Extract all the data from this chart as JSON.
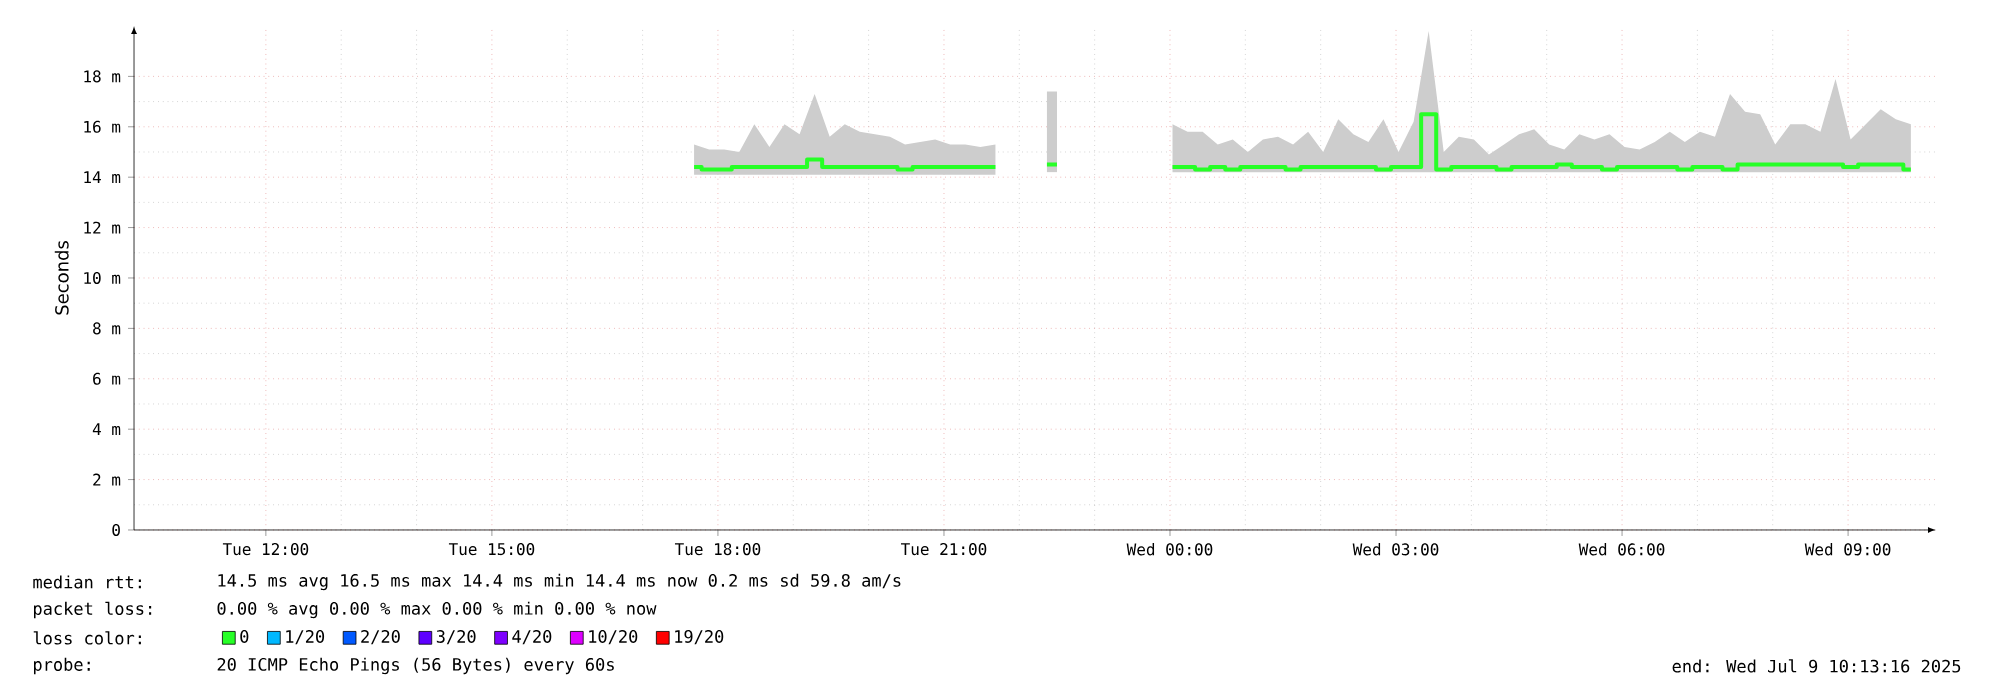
{
  "chart_data": {
    "type": "step",
    "ylabel": "Seconds",
    "annotations": [
      "median rtt:",
      "14.5 ms avg  16.5 ms max  14.4 ms min  14.4 ms now  0.2 ms sd  59.8   am/s",
      "packet loss:",
      "0.00 % avg  0.00 % max  0.00 % min  0.00 % now",
      "loss color:",
      "probe:",
      "20 ICMP Echo Pings (56 Bytes) every 60s",
      "end: Wed Jul  9 10:13:16 2025"
    ],
    "xlim": [
      "2025-07-08T10:15",
      "2025-07-09T10:10"
    ],
    "xticks": [
      {
        "value": "2025-07-08T12:00",
        "label": "Tue 12:00"
      },
      {
        "value": "2025-07-08T15:00",
        "label": "Tue 15:00"
      },
      {
        "value": "2025-07-08T18:00",
        "label": "Tue 18:00"
      },
      {
        "value": "2025-07-08T21:00",
        "label": "Tue 21:00"
      },
      {
        "value": "2025-07-09T00:00",
        "label": "Wed 00:00"
      },
      {
        "value": "2025-07-09T03:00",
        "label": "Wed 03:00"
      },
      {
        "value": "2025-07-09T06:00",
        "label": "Wed 06:00"
      },
      {
        "value": "2025-07-09T09:00",
        "label": "Wed 09:00"
      }
    ],
    "ylim": [
      0,
      20
    ],
    "yticks": [
      0,
      {
        "value": 2,
        "label": "2 m"
      },
      {
        "value": 4,
        "label": "4 m"
      },
      {
        "value": 6,
        "label": "6 m"
      },
      {
        "value": 8,
        "label": "8 m"
      },
      {
        "value": 10,
        "label": "10 m"
      },
      {
        "value": 12,
        "label": "12 m"
      },
      {
        "value": 14,
        "label": "14 m"
      },
      {
        "value": 16,
        "label": "16 m"
      },
      {
        "value": 18,
        "label": "18 m"
      }
    ],
    "grid": true,
    "legend": "bottom left",
    "marker": "none",
    "series": [
      {
        "name": "0",
        "color": "#26ff26",
        "x": [
          "2025-07-08T17:41",
          "2025-07-08T17:53",
          "2025-07-08T18:05",
          "2025-07-08T18:17",
          "2025-07-08T18:29",
          "2025-07-08T18:41",
          "2025-07-08T18:53",
          "2025-07-08T19:05",
          "2025-07-08T19:17",
          "2025-07-08T19:29",
          "2025-07-08T19:41",
          "2025-07-08T19:53",
          "2025-07-08T20:05",
          "2025-07-08T20:17",
          "2025-07-08T20:29",
          "2025-07-08T20:41",
          "2025-07-08T20:53",
          "2025-07-08T21:05",
          "2025-07-08T21:17",
          "2025-07-08T21:29",
          "2025-07-08T21:41",
          "2025-07-08T22:06",
          "2025-07-08T22:22",
          "2025-07-08T22:30",
          "2025-07-08T23:12",
          "2025-07-09T00:02",
          "2025-07-09T00:14",
          "2025-07-09T00:26",
          "2025-07-09T00:38",
          "2025-07-09T00:50",
          "2025-07-09T01:02",
          "2025-07-09T01:14",
          "2025-07-09T01:26",
          "2025-07-09T01:38",
          "2025-07-09T01:50",
          "2025-07-09T02:02",
          "2025-07-09T02:14",
          "2025-07-09T02:26",
          "2025-07-09T02:38",
          "2025-07-09T02:50",
          "2025-07-09T03:02",
          "2025-07-09T03:14",
          "2025-07-09T03:26",
          "2025-07-09T03:38",
          "2025-07-09T03:50",
          "2025-07-09T04:02",
          "2025-07-09T04:14",
          "2025-07-09T04:26",
          "2025-07-09T04:38",
          "2025-07-09T04:50",
          "2025-07-09T05:02",
          "2025-07-09T05:14",
          "2025-07-09T05:26",
          "2025-07-09T05:38",
          "2025-07-09T05:50",
          "2025-07-09T06:02",
          "2025-07-09T06:14",
          "2025-07-09T06:26",
          "2025-07-09T06:38",
          "2025-07-09T06:50",
          "2025-07-09T07:02",
          "2025-07-09T07:14",
          "2025-07-09T07:26",
          "2025-07-09T07:38",
          "2025-07-09T07:50",
          "2025-07-09T08:02",
          "2025-07-09T08:14",
          "2025-07-09T08:26",
          "2025-07-09T08:38",
          "2025-07-09T08:50",
          "2025-07-09T09:02",
          "2025-07-09T09:14",
          "2025-07-09T09:26",
          "2025-07-09T09:38",
          "2025-07-09T09:50"
        ],
        "values": [
          14.4,
          14.3,
          14.3,
          14.4,
          14.4,
          14.4,
          14.4,
          14.4,
          14.7,
          14.4,
          14.4,
          14.4,
          14.4,
          14.4,
          14.3,
          14.4,
          14.4,
          14.4,
          14.4,
          14.4,
          14.4,
          null,
          14.5,
          14.5,
          null,
          14.4,
          14.4,
          14.3,
          14.4,
          14.3,
          14.4,
          14.4,
          14.4,
          14.3,
          14.4,
          14.4,
          14.4,
          14.4,
          14.4,
          14.3,
          14.4,
          14.4,
          16.5,
          14.3,
          14.4,
          14.4,
          14.4,
          14.3,
          14.4,
          14.4,
          14.4,
          14.5,
          14.4,
          14.4,
          14.3,
          14.4,
          14.4,
          14.4,
          14.4,
          14.3,
          14.4,
          14.4,
          14.3,
          14.5,
          14.5,
          14.5,
          14.5,
          14.5,
          14.5,
          14.5,
          14.4,
          14.5,
          14.5,
          14.5,
          14.3
        ],
        "lower": [
          14.1,
          14.1,
          14.1,
          14.1,
          14.1,
          14.1,
          14.1,
          14.1,
          14.1,
          14.1,
          14.1,
          14.1,
          14.1,
          14.1,
          14.1,
          14.1,
          14.1,
          14.1,
          14.1,
          14.1,
          14.1,
          null,
          14.2,
          14.2,
          null,
          14.2,
          14.2,
          14.2,
          14.2,
          14.2,
          14.2,
          14.2,
          14.2,
          14.2,
          14.2,
          14.2,
          14.2,
          14.2,
          14.2,
          14.2,
          14.2,
          14.2,
          14.2,
          14.2,
          14.2,
          14.2,
          14.2,
          14.2,
          14.2,
          14.2,
          14.2,
          14.2,
          14.2,
          14.2,
          14.2,
          14.2,
          14.2,
          14.2,
          14.2,
          14.2,
          14.2,
          14.2,
          14.2,
          14.2,
          14.2,
          14.2,
          14.2,
          14.2,
          14.2,
          14.2,
          14.2,
          14.2,
          14.2,
          14.2,
          14.2
        ],
        "upper": [
          15.3,
          15.1,
          15.1,
          15.0,
          16.1,
          15.2,
          16.1,
          15.7,
          17.3,
          15.6,
          16.1,
          15.8,
          15.7,
          15.6,
          15.3,
          15.4,
          15.5,
          15.3,
          15.3,
          15.2,
          15.3,
          null,
          17.4,
          17.4,
          null,
          16.1,
          15.8,
          15.8,
          15.3,
          15.5,
          15.0,
          15.5,
          15.6,
          15.3,
          15.8,
          15.0,
          16.3,
          15.7,
          15.4,
          16.3,
          15.0,
          16.2,
          19.8,
          15.0,
          15.6,
          15.5,
          14.9,
          15.3,
          15.7,
          15.9,
          15.3,
          15.1,
          15.7,
          15.5,
          15.7,
          15.2,
          15.1,
          15.4,
          15.8,
          15.4,
          15.8,
          15.6,
          17.3,
          16.6,
          16.5,
          15.3,
          16.1,
          16.1,
          15.8,
          17.9,
          15.5,
          16.1,
          16.7,
          16.3,
          16.1
        ]
      },
      {
        "name": "1/20",
        "color": "#00b8ff"
      },
      {
        "name": "2/20",
        "color": "#0059ff"
      },
      {
        "name": "3/20",
        "color": "#5e00ff"
      },
      {
        "name": "4/20",
        "color": "#7e00ff"
      },
      {
        "name": "10/20",
        "color": "#dd00ff"
      },
      {
        "name": "19/20",
        "color": "#ff0000"
      }
    ]
  }
}
